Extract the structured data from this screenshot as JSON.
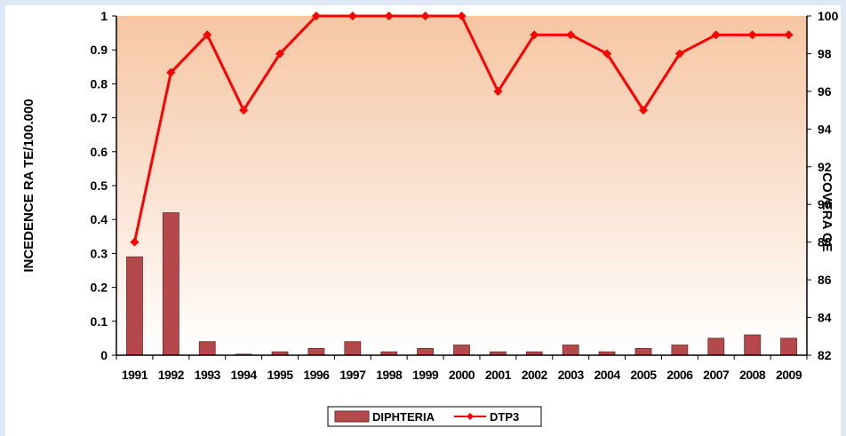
{
  "chart_data": {
    "type": "bar+line",
    "categories": [
      "1991",
      "1992",
      "1993",
      "1994",
      "1995",
      "1996",
      "1997",
      "1998",
      "1999",
      "2000",
      "2001",
      "2002",
      "2003",
      "2004",
      "2005",
      "2006",
      "2007",
      "2008",
      "2009"
    ],
    "series": [
      {
        "name": "DIPHTERIA",
        "type": "bar",
        "axis": "left",
        "color": "#b5484a",
        "values": [
          0.29,
          0.42,
          0.04,
          0.003,
          0.01,
          0.02,
          0.04,
          0.01,
          0.02,
          0.03,
          0.01,
          0.01,
          0.03,
          0.01,
          0.02,
          0.03,
          0.05,
          0.06,
          0.05
        ]
      },
      {
        "name": "DTP3",
        "type": "line",
        "axis": "right",
        "color": "#ff0000",
        "values": [
          88,
          97,
          99,
          95,
          98,
          100,
          100,
          100,
          100,
          100,
          96,
          99,
          99,
          98,
          95,
          98,
          99,
          99,
          99
        ]
      }
    ],
    "ylabel": "INCEDENCE RA TE/100.000",
    "y2label": "COVERA GE",
    "ylim": [
      0,
      1
    ],
    "yticks": [
      "0",
      "0.1",
      "0.2",
      "0.3",
      "0.4",
      "0.5",
      "0.6",
      "0.7",
      "0.8",
      "0.9",
      "1"
    ],
    "y2lim": [
      82,
      100
    ],
    "y2ticks": [
      "82",
      "84",
      "86",
      "88",
      "90",
      "92",
      "94",
      "96",
      "98",
      "100"
    ],
    "legend_position": "bottom",
    "plot_background": "gradient peach (top) to white (bottom)"
  }
}
